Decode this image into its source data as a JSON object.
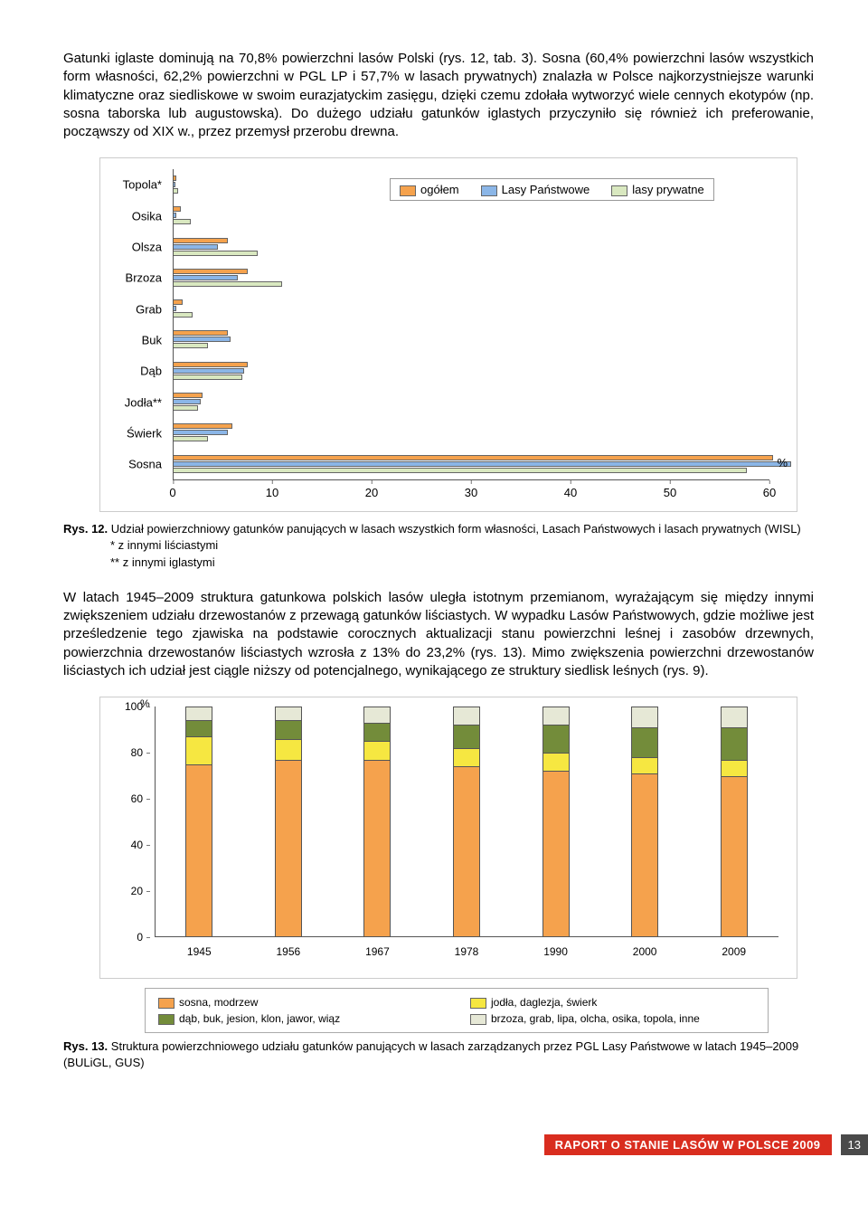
{
  "text": {
    "para1": "Gatunki iglaste dominują na 70,8% powierzchni lasów Polski (rys. 12, tab. 3). Sosna (60,4% powierzchni lasów wszystkich form własności, 62,2% powierzchni w PGL LP i 57,7% w lasach prywatnych) znalazła w Polsce najkorzystniejsze warunki klimatyczne oraz siedliskowe w swoim eurazjatyckim zasięgu, dzięki czemu zdołała wytworzyć wiele cennych ekotypów (np. sosna taborska lub augustowska). Do dużego udziału gatunków iglastych przyczyniło się również ich preferowanie, począwszy od XIX w., przez przemysł przerobu drewna.",
    "fig12_label": "Rys. 12.",
    "fig12_caption": "Udział powierzchniowy gatunków panujących w lasach wszystkich form własności, Lasach Państwowych i lasach prywatnych (WISL)",
    "fig12_note1": "* z innymi liściastymi",
    "fig12_note2": "** z innymi iglastymi",
    "para2": "W latach 1945–2009 struktura gatunkowa polskich lasów uległa istotnym przemianom, wyrażającym się między innymi zwiększeniem udziału drzewostanów z przewagą gatunków liściastych. W wypadku Lasów Państwowych, gdzie możliwe jest prześledzenie tego zjawiska na podstawie corocznych aktualizacji stanu powierzchni leśnej i zasobów drzewnych, powierzchnia drzewostanów liściastych wzrosła z 13% do 23,2% (rys. 13). Mimo zwiększenia powierzchni drzewostanów liściastych ich udział jest ciągle niższy od potencjalnego, wynikającego ze struktury siedlisk leśnych (rys. 9).",
    "fig13_label": "Rys. 13.",
    "fig13_caption": "Struktura powierzchniowego udziału gatunków panujących w lasach zarządzanych przez PGL Lasy Państwowe w latach 1945–2009 (BULiGL, GUS)",
    "footer_title": "RAPORT O STANIE LASÓW W POLSCE 2009",
    "page_number": "13",
    "pct_sign": "%"
  },
  "chart1": {
    "categories": [
      "Topola*",
      "Osika",
      "Olsza",
      "Brzoza",
      "Grab",
      "Buk",
      "Dąb",
      "Jodła**",
      "Świerk",
      "Sosna"
    ],
    "series": [
      {
        "name": "ogółem",
        "color": "#f5a24d",
        "values": [
          0.4,
          0.8,
          5.5,
          7.5,
          1.0,
          5.5,
          7.5,
          3.0,
          6.0,
          60.4
        ]
      },
      {
        "name": "Lasy Państwowe",
        "color": "#8bb6e7",
        "values": [
          0.3,
          0.4,
          4.5,
          6.5,
          0.4,
          5.8,
          7.2,
          2.8,
          5.5,
          62.2
        ]
      },
      {
        "name": "lasy prywatne",
        "color": "#d9e8c0",
        "values": [
          0.5,
          1.8,
          8.5,
          11.0,
          2.0,
          3.5,
          7.0,
          2.5,
          3.5,
          57.7
        ]
      }
    ],
    "xmax": 60,
    "xticks": [
      0,
      10,
      20,
      30,
      40,
      50,
      60
    ],
    "border_color": "#666666",
    "bg": "#ffffff"
  },
  "chart2": {
    "years": [
      "1945",
      "1956",
      "1967",
      "1978",
      "1990",
      "2000",
      "2009"
    ],
    "ymax": 100,
    "yticks": [
      0,
      20,
      40,
      60,
      80,
      100
    ],
    "series": [
      {
        "name": "sosna, modrzew",
        "color": "#f5a24d"
      },
      {
        "name": "jodła, daglezja, świerk",
        "color": "#f6e741"
      },
      {
        "name": "dąb, buk, jesion, klon, jawor, wiąz",
        "color": "#738c3a"
      },
      {
        "name": "brzoza, grab, lipa, olcha, osika, topola, inne",
        "color": "#e6e8d6"
      }
    ],
    "data": [
      [
        75,
        12,
        7,
        6
      ],
      [
        77,
        9,
        8,
        6
      ],
      [
        77,
        8,
        8,
        7
      ],
      [
        74,
        8,
        10,
        8
      ],
      [
        72,
        8,
        12,
        8
      ],
      [
        71,
        7,
        13,
        9
      ],
      [
        70,
        7,
        14,
        9
      ]
    ]
  },
  "colors": {
    "footer_bar": "#d92d1f",
    "footer_pg": "#4a4a4a"
  }
}
